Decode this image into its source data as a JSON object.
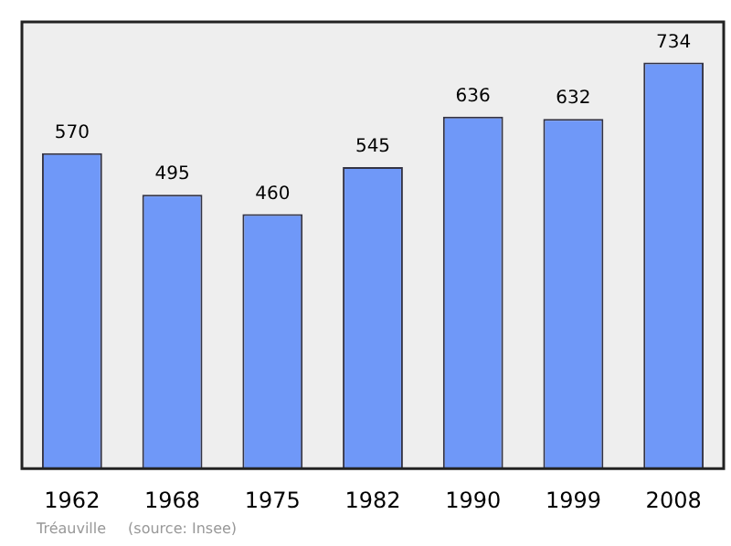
{
  "chart_data": {
    "type": "bar",
    "categories": [
      "1962",
      "1968",
      "1975",
      "1982",
      "1990",
      "1999",
      "2008"
    ],
    "values": [
      570,
      495,
      460,
      545,
      636,
      632,
      734
    ],
    "color": "#6f98f8",
    "data_labels": true,
    "relative": false,
    "grid": false,
    "legend": false,
    "annotations": [
      "Tréauville",
      "(source: Insee)"
    ]
  }
}
